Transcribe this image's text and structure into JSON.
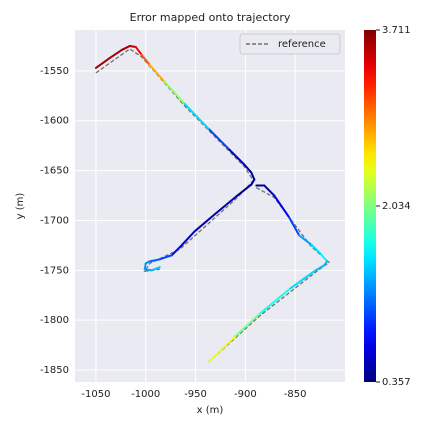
{
  "chart_data": {
    "type": "line",
    "title": "Error mapped onto trajectory",
    "xlabel": "x (m)",
    "ylabel": "y (m)",
    "xlim": [
      -1071,
      -800
    ],
    "ylim": [
      -1862,
      -1509
    ],
    "xticks": [
      -1050,
      -1000,
      -950,
      -900,
      -850
    ],
    "yticks": [
      -1550,
      -1600,
      -1650,
      -1700,
      -1750,
      -1800,
      -1850
    ],
    "grid": true,
    "legend": "upper right",
    "colormap": "jet",
    "colorbar": {
      "lim": [
        0.357,
        3.711
      ],
      "ticks": [
        0.357,
        2.034,
        3.711
      ]
    },
    "series": [
      {
        "name": "reference",
        "color": "#707070",
        "dashed": true,
        "x": [
          -1050,
          -1016,
          -1004,
          -961,
          -901,
          -892,
          -908,
          -966,
          -996,
          -1001,
          -986,
          null,
          -889,
          -871,
          -834,
          -816,
          -831,
          -886,
          -938
        ],
        "y": [
          -1552,
          -1528,
          -1536,
          -1585,
          -1646,
          -1660,
          -1677,
          -1729,
          -1743,
          -1751,
          -1749,
          null,
          -1667,
          -1677,
          -1726,
          -1742,
          -1753,
          -1796,
          -1843
        ]
      }
    ],
    "trajectory": {
      "x": [
        -1050,
        -1036,
        -1024,
        -1016,
        -1010,
        -1004,
        -996,
        -981,
        -961,
        -936,
        -916,
        -901,
        -894,
        -891,
        -894,
        -908,
        -931,
        -951,
        -966,
        -974,
        -986,
        -996,
        -1000,
        -1001,
        -994,
        -986,
        null,
        -889,
        -881,
        -871,
        -856,
        -846,
        -834,
        -824,
        -818,
        -821,
        -831,
        -856,
        -886,
        -911,
        -936
      ],
      "y": [
        -1547,
        -1537,
        -1529,
        -1525,
        -1526,
        -1534,
        -1544,
        -1561,
        -1583,
        -1609,
        -1629,
        -1644,
        -1652,
        -1659,
        -1664,
        -1675,
        -1694,
        -1711,
        -1727,
        -1735,
        -1739,
        -1741,
        -1743,
        -1749,
        -1750,
        -1747,
        null,
        -1665,
        -1665,
        -1675,
        -1697,
        -1715,
        -1724,
        -1734,
        -1741,
        -1745,
        -1751,
        -1769,
        -1794,
        -1817,
        -1841
      ],
      "error": [
        3.6,
        3.6,
        3.6,
        3.5,
        3.3,
        3.0,
        2.7,
        2.1,
        1.5,
        1.0,
        0.6,
        0.45,
        0.4,
        0.4,
        0.4,
        0.5,
        0.5,
        0.6,
        0.8,
        1.0,
        1.1,
        1.2,
        1.3,
        1.3,
        1.4,
        1.3,
        null,
        0.4,
        0.5,
        0.7,
        1.0,
        1.3,
        1.5,
        1.6,
        1.4,
        1.4,
        1.5,
        1.7,
        2.0,
        2.4,
        2.8
      ]
    }
  }
}
